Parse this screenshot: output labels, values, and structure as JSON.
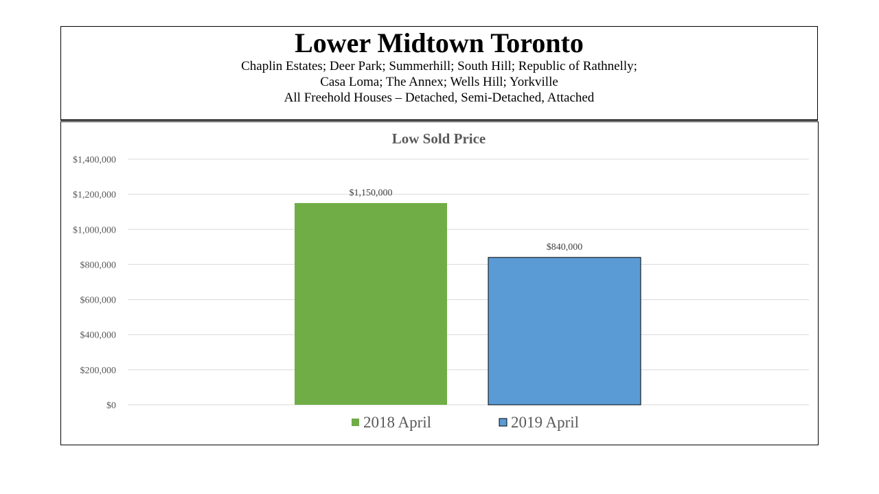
{
  "header": {
    "title": "Lower Midtown Toronto",
    "line1": "Chaplin Estates; Deer Park; Summerhill;  South Hill; Republic of Rathnelly;",
    "line2": "Casa Loma; The Annex;  Wells Hill; Yorkville",
    "line3": "All Freehold Houses – Detached,  Semi-Detached,  Attached"
  },
  "chart_data": {
    "type": "bar",
    "title": "Low Sold Price",
    "categories": [
      "2018 April",
      "2019 April"
    ],
    "values": [
      1150000,
      840000
    ],
    "value_labels": [
      "$1,150,000",
      "$840,000"
    ],
    "colors": [
      "#70AD47",
      "#5B9BD5"
    ],
    "ylim": [
      0,
      1400000
    ],
    "yticks": [
      0,
      200000,
      400000,
      600000,
      800000,
      1000000,
      1200000,
      1400000
    ],
    "ytick_labels": [
      "$0",
      "$200,000",
      "$400,000",
      "$600,000",
      "$800,000",
      "$1,000,000",
      "$1,200,000",
      "$1,400,000"
    ],
    "grid": true,
    "legend": "bottom",
    "xlabel": "",
    "ylabel": ""
  }
}
